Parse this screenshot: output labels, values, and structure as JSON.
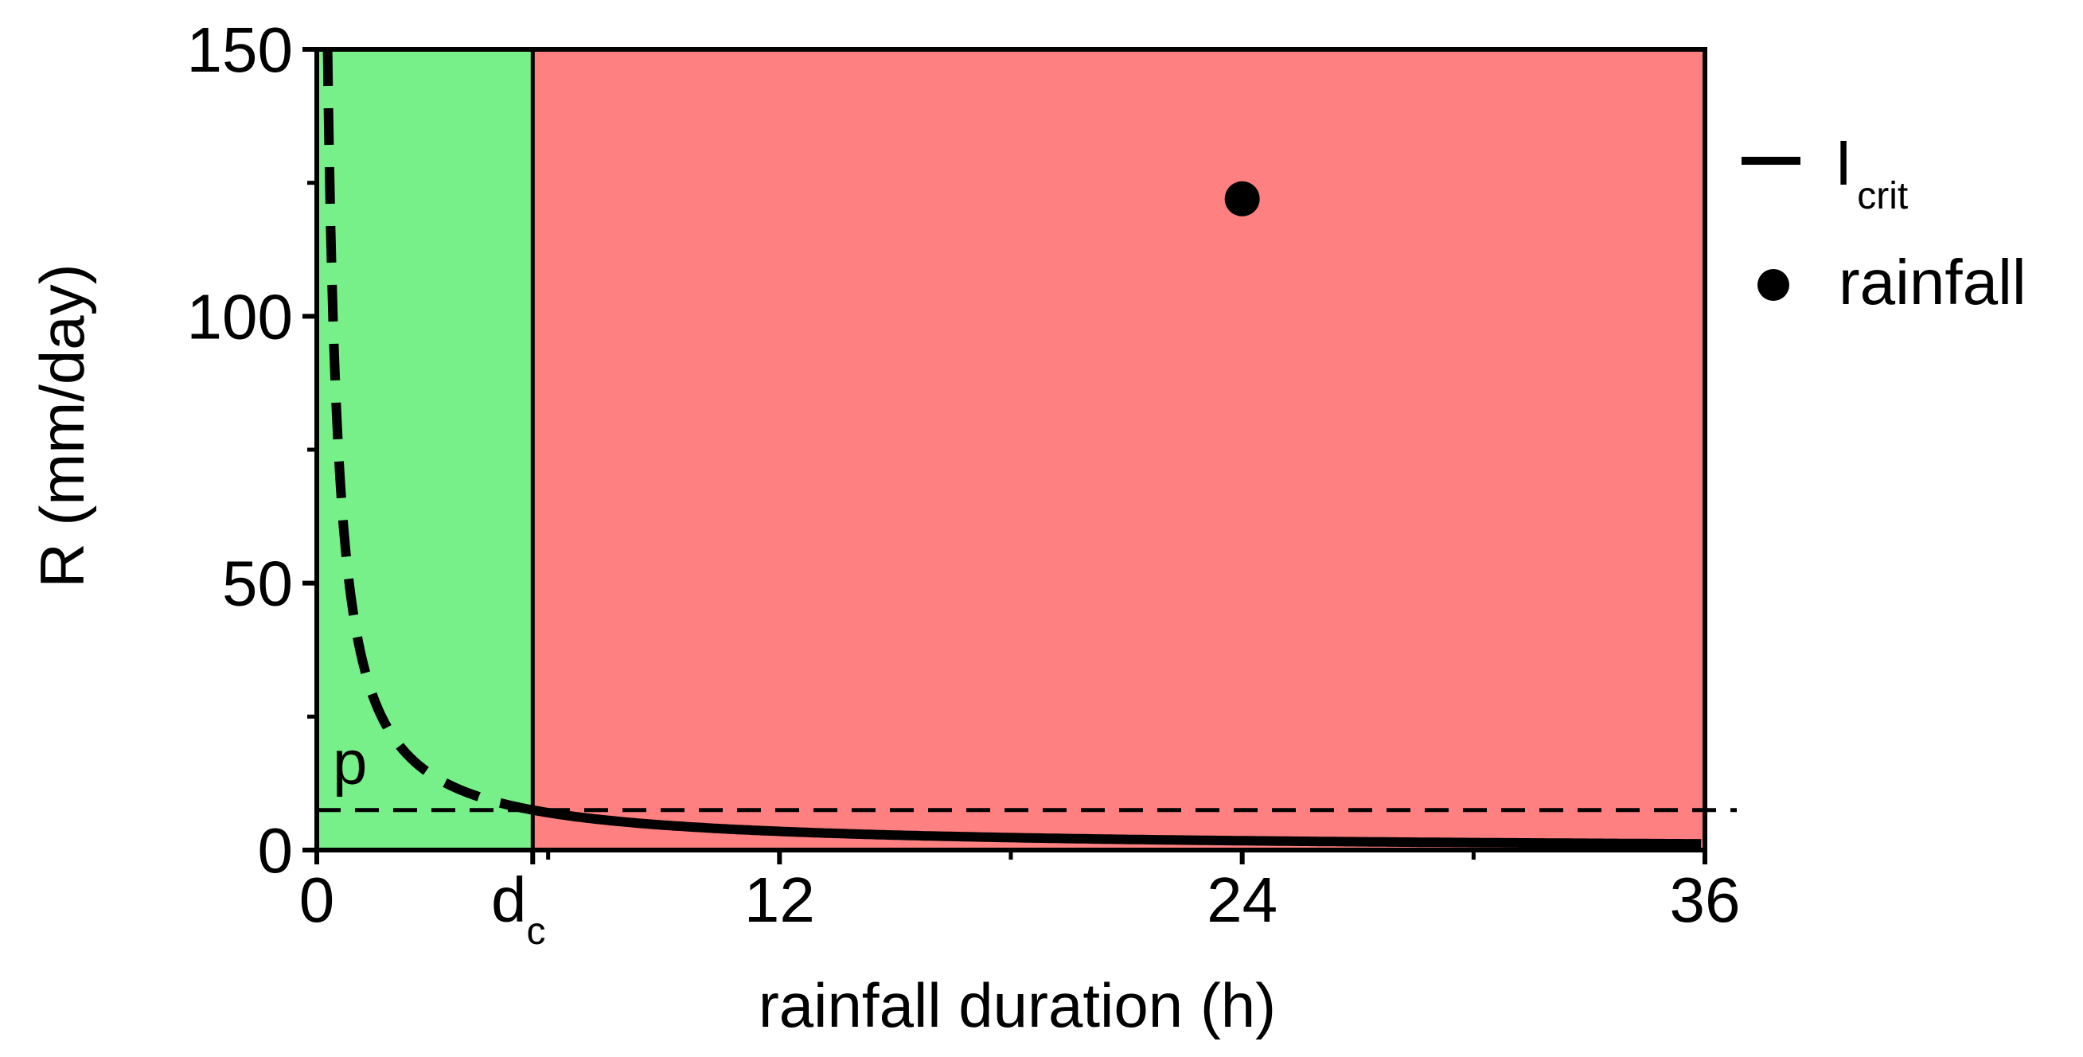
{
  "chart_data": {
    "type": "line",
    "xlabel": "rainfall duration (h)",
    "ylabel": "R (mm/day)",
    "xlim": [
      0,
      36
    ],
    "ylim": [
      0,
      150
    ],
    "xticks": [
      {
        "value": 0,
        "label": "0"
      },
      {
        "value": 5.6,
        "label": "d",
        "sub": "c"
      },
      {
        "value": 12,
        "label": "12"
      },
      {
        "value": 24,
        "label": "24"
      },
      {
        "value": 36,
        "label": "36"
      }
    ],
    "x_minor_ticks": [
      6,
      18,
      30
    ],
    "yticks": [
      0,
      50,
      100,
      150
    ],
    "y_minor_ticks": [
      25,
      75,
      125
    ],
    "regions": [
      {
        "x": [
          0,
          5.6
        ],
        "color": "#78f08a"
      },
      {
        "x": [
          5.6,
          36
        ],
        "color": "#ff8080"
      }
    ],
    "critical_duration": 5.6,
    "p_level": 7.5,
    "p_label": "p",
    "legend": {
      "position": "right",
      "entries": [
        {
          "marker": "line",
          "label": "I",
          "sub": "crit"
        },
        {
          "marker": "dot",
          "label": "rainfall"
        }
      ]
    },
    "curve_form": "R = 42 / x (dashed for x < dc, solid for x >= dc)",
    "rainfall_point": {
      "x": 24,
      "y": 122
    },
    "colors": {
      "axis": "#000000",
      "green_region": "#78f08a",
      "red_region": "#ff8080"
    }
  }
}
